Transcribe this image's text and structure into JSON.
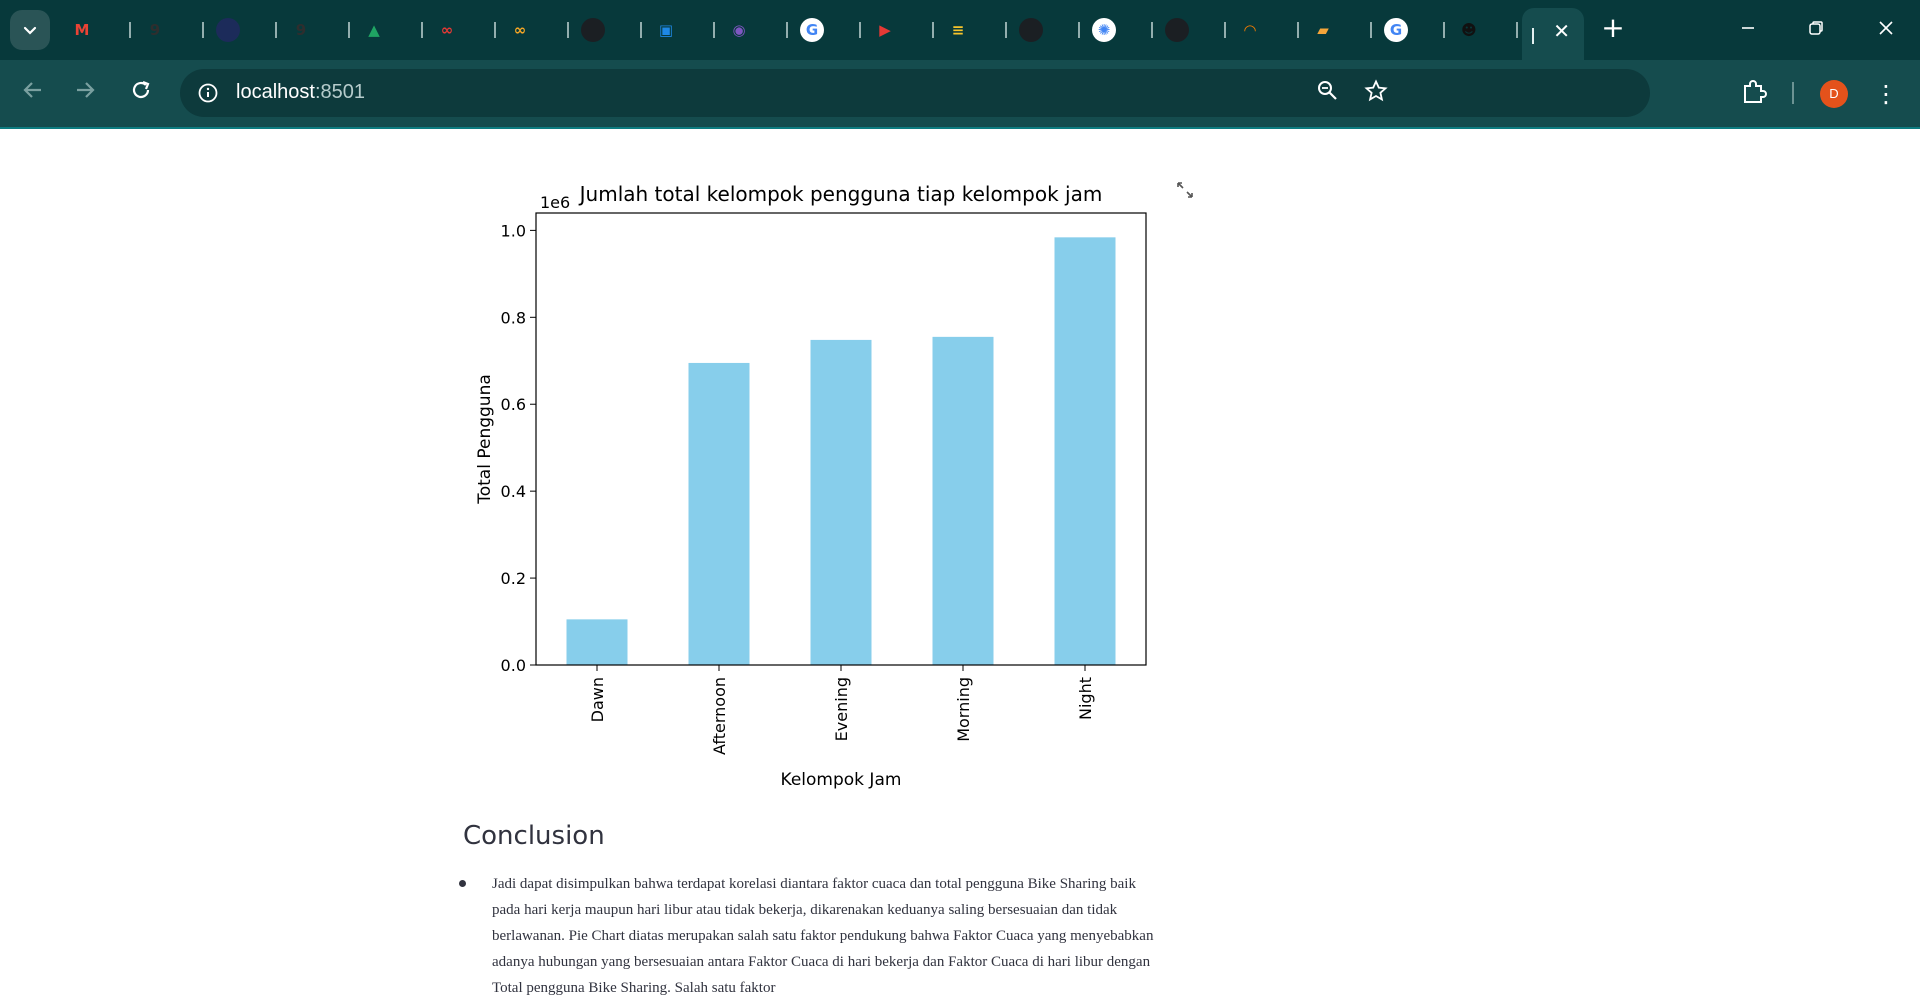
{
  "browser": {
    "tabs": [
      {
        "icon": "gmail-icon",
        "letter": "M",
        "color": "#ea4335"
      },
      {
        "icon": "gdrive-folder-icon",
        "letter": "9",
        "color": "#2e2e2e"
      },
      {
        "icon": "dark-app-icon",
        "letter": "",
        "color": "#1c2b5a"
      },
      {
        "icon": "gdrive-folder-icon-2",
        "letter": "9",
        "color": "#2e2e2e"
      },
      {
        "icon": "google-drive-icon",
        "letter": "▲",
        "color": "#1fa463"
      },
      {
        "icon": "infinity-red-icon",
        "letter": "∞",
        "color": "#e53935"
      },
      {
        "icon": "infinity-orange-icon",
        "letter": "∞",
        "color": "#f9a825"
      },
      {
        "icon": "github-icon",
        "letter": "",
        "color": "#1b1f23"
      },
      {
        "icon": "classroom-icon",
        "letter": "▣",
        "color": "#1e88e5"
      },
      {
        "icon": "purple-app-icon",
        "letter": "◉",
        "color": "#7e57c2"
      },
      {
        "icon": "google-icon",
        "letter": "G",
        "color": "#ffffff"
      },
      {
        "icon": "youtube-icon",
        "letter": "▶",
        "color": "#e53935"
      },
      {
        "icon": "course-icon",
        "letter": "≡",
        "color": "#f7c52b"
      },
      {
        "icon": "github-icon-2",
        "letter": "",
        "color": "#1b1f23"
      },
      {
        "icon": "chatgpt-icon",
        "letter": "✺",
        "color": "#ffffff"
      },
      {
        "icon": "github-icon-3",
        "letter": "",
        "color": "#1b1f23"
      },
      {
        "icon": "arc-icon",
        "letter": "◠",
        "color": "#f57c00"
      },
      {
        "icon": "book-icon",
        "letter": "▰",
        "color": "#f4a53a"
      },
      {
        "icon": "google-icon-2",
        "letter": "G",
        "color": "#ffffff"
      },
      {
        "icon": "bot-icon",
        "letter": "☻",
        "color": "#111111"
      }
    ],
    "url_host": "localhost",
    "url_port": ":8501",
    "avatar_letter": "D",
    "theme_color": "#07393b"
  },
  "chart_data": {
    "type": "bar",
    "title": "Jumlah total kelompok pengguna tiap kelompok jam",
    "xlabel": "Kelompok Jam",
    "ylabel": "Total Pengguna",
    "offset_label": "1e6",
    "categories": [
      "Dawn",
      "Afternoon",
      "Evening",
      "Morning",
      "Night"
    ],
    "values": [
      105000,
      695000,
      748000,
      755000,
      984000
    ],
    "ylim": [
      0,
      1040000
    ],
    "yticks": [
      0,
      200000,
      400000,
      600000,
      800000,
      1000000
    ],
    "ytick_labels": [
      "0.0",
      "0.2",
      "0.4",
      "0.6",
      "0.8",
      "1.0"
    ],
    "bar_color": "#87ceeb",
    "grid": false
  },
  "content": {
    "conclusion_heading": "Conclusion",
    "bullets": [
      "Jadi dapat disimpulkan bahwa terdapat korelasi diantara faktor cuaca dan total pengguna Bike Sharing baik pada hari kerja maupun hari libur atau tidak bekerja, dikarenakan keduanya saling bersesuaian dan tidak berlawanan. Pie Chart diatas merupakan salah satu faktor pendukung bahwa Faktor Cuaca yang menyebabkan adanya hubungan yang bersesuaian antara Faktor Cuaca di hari bekerja dan Faktor Cuaca di hari libur dengan Total pengguna Bike Sharing. Salah satu faktor"
    ]
  }
}
